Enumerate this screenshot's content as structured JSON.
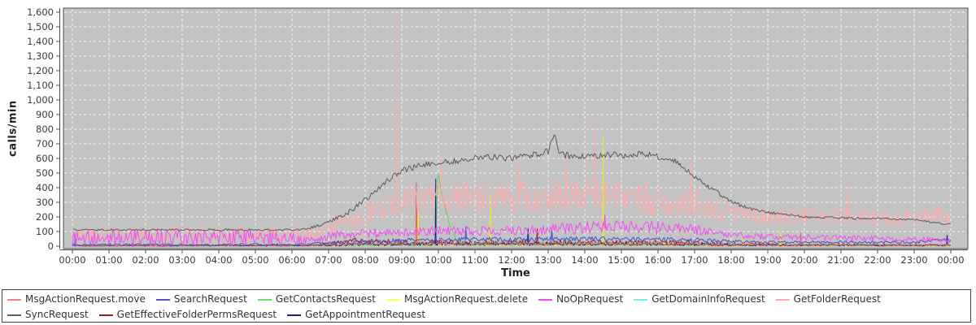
{
  "chart_data": {
    "type": "line",
    "title": "",
    "ylabel": "calls/min",
    "xlabel": "Time",
    "ylim": [
      0,
      1600
    ],
    "xlim_hours": [
      0,
      24
    ],
    "grid": "white-dashed",
    "plot_bg": "#c3c3c3",
    "axis_color": "#4f4f4f",
    "tick_text_color": "#3b3b3b",
    "legend_position": "bottom",
    "y_tick_values": [
      0,
      100,
      200,
      300,
      400,
      500,
      600,
      700,
      800,
      900,
      1000,
      1100,
      1200,
      1300,
      1400,
      1500,
      1600
    ],
    "y_ticks": [
      "0",
      "100",
      "200",
      "300",
      "400",
      "500",
      "600",
      "700",
      "800",
      "900",
      "1,000",
      "1,100",
      "1,200",
      "1,300",
      "1,400",
      "1,500",
      "1,600"
    ],
    "x_tick_hours": [
      0,
      1,
      2,
      3,
      4,
      5,
      6,
      7,
      8,
      9,
      10,
      11,
      12,
      13,
      14,
      15,
      16,
      17,
      18,
      19,
      20,
      21,
      22,
      23,
      24
    ],
    "x_ticks": [
      "00:00",
      "01:00",
      "02:00",
      "03:00",
      "04:00",
      "05:00",
      "06:00",
      "07:00",
      "08:00",
      "09:00",
      "10:00",
      "11:00",
      "12:00",
      "13:00",
      "14:00",
      "15:00",
      "16:00",
      "17:00",
      "18:00",
      "19:00",
      "20:00",
      "21:00",
      "22:00",
      "23:00",
      "00:00"
    ],
    "draw_order": [
      "GetDomainInfoRequest",
      "GetEffectiveFolderPermsRequest",
      "MsgActionRequest.delete",
      "GetContactsRequest",
      "GetAppointmentRequest",
      "MsgActionRequest.move",
      "SearchRequest",
      "GetFolderRequest",
      "NoOpRequest",
      "SyncRequest"
    ],
    "series": [
      {
        "name": "MsgActionRequest.move",
        "color": "#ef6161",
        "legend_color": "#f28080",
        "seed": 101,
        "keypoints": [
          [
            0,
            4
          ],
          [
            6.5,
            5
          ],
          [
            7,
            12
          ],
          [
            8,
            18
          ],
          [
            12,
            18
          ],
          [
            16,
            20
          ],
          [
            17,
            16
          ],
          [
            18,
            10
          ],
          [
            21,
            8
          ],
          [
            24,
            8
          ]
        ],
        "noise": [
          [
            0,
            4
          ],
          [
            6.5,
            5
          ],
          [
            7,
            12
          ],
          [
            17,
            14
          ],
          [
            18,
            9
          ],
          [
            24,
            7
          ]
        ],
        "spikes": [
          [
            9.4,
            435
          ],
          [
            19.9,
            90
          ]
        ]
      },
      {
        "name": "SearchRequest",
        "color": "#4d4dcc",
        "legend_color": "#5555cc",
        "seed": 202,
        "keypoints": [
          [
            0,
            10
          ],
          [
            6,
            10
          ],
          [
            7,
            20
          ],
          [
            8,
            30
          ],
          [
            9,
            40
          ],
          [
            10,
            45
          ],
          [
            11,
            48
          ],
          [
            12,
            45
          ],
          [
            13,
            48
          ],
          [
            14,
            52
          ],
          [
            15,
            48
          ],
          [
            16,
            48
          ],
          [
            17,
            42
          ],
          [
            18,
            32
          ],
          [
            19,
            28
          ],
          [
            21,
            28
          ],
          [
            22,
            26
          ],
          [
            23,
            28
          ],
          [
            23.8,
            45
          ],
          [
            24,
            35
          ]
        ],
        "noise": [
          [
            0,
            8
          ],
          [
            6,
            8
          ],
          [
            8,
            14
          ],
          [
            17,
            16
          ],
          [
            18,
            10
          ],
          [
            23,
            10
          ],
          [
            24,
            12
          ]
        ],
        "spikes": [
          [
            0.08,
            105
          ],
          [
            10.75,
            135
          ],
          [
            13.1,
            115
          ]
        ]
      },
      {
        "name": "GetContactsRequest",
        "color": "#59d859",
        "legend_color": "#66e066",
        "seed": 303,
        "keypoints": [
          [
            0,
            6
          ],
          [
            9.9,
            8
          ],
          [
            9.95,
            100
          ],
          [
            9.98,
            520
          ],
          [
            10.1,
            350
          ],
          [
            10.3,
            150
          ],
          [
            10.5,
            35
          ],
          [
            10.7,
            12
          ],
          [
            24,
            8
          ]
        ],
        "noise": [
          [
            0,
            5
          ],
          [
            9.85,
            5
          ],
          [
            9.9,
            0
          ],
          [
            10.45,
            0
          ],
          [
            10.6,
            7
          ],
          [
            24,
            6
          ]
        ],
        "spikes": []
      },
      {
        "name": "MsgActionRequest.delete",
        "color": "#e8e832",
        "legend_color": "#ffff5e",
        "seed": 404,
        "keypoints": [
          [
            0,
            4
          ],
          [
            7,
            8
          ],
          [
            8,
            12
          ],
          [
            16,
            12
          ],
          [
            18,
            8
          ],
          [
            24,
            6
          ]
        ],
        "noise": [
          [
            0,
            4
          ],
          [
            7,
            8
          ],
          [
            17,
            10
          ],
          [
            24,
            6
          ]
        ],
        "spikes": [
          [
            9.45,
            245
          ],
          [
            11.42,
            355
          ],
          [
            14.5,
            755
          ],
          [
            18.3,
            65
          ],
          [
            19.35,
            110
          ]
        ]
      },
      {
        "name": "NoOpRequest",
        "color": "#f24df2",
        "legend_color": "#f24df2",
        "seed": 505,
        "keypoints": [
          [
            0,
            55
          ],
          [
            6,
            55
          ],
          [
            6.5,
            50
          ],
          [
            7,
            70
          ],
          [
            8,
            85
          ],
          [
            9,
            95
          ],
          [
            10,
            105
          ],
          [
            12,
            105
          ],
          [
            13,
            115
          ],
          [
            14,
            125
          ],
          [
            15,
            135
          ],
          [
            16,
            125
          ],
          [
            17,
            115
          ],
          [
            17.5,
            95
          ],
          [
            18,
            75
          ],
          [
            19,
            65
          ],
          [
            20,
            60
          ],
          [
            21,
            58
          ],
          [
            22,
            52
          ],
          [
            23,
            48
          ],
          [
            24,
            42
          ]
        ],
        "noise": [
          [
            0,
            55
          ],
          [
            6,
            55
          ],
          [
            6.5,
            30
          ],
          [
            13,
            35
          ],
          [
            14,
            45
          ],
          [
            16,
            45
          ],
          [
            17,
            35
          ],
          [
            18,
            22
          ],
          [
            24,
            18
          ]
        ],
        "spikes": [
          [
            14.55,
            215
          ]
        ]
      },
      {
        "name": "GetDomainInfoRequest",
        "color": "#5fe0e0",
        "legend_color": "#6ef2f2",
        "seed": 606,
        "keypoints": [
          [
            0,
            4
          ],
          [
            7,
            8
          ],
          [
            8,
            15
          ],
          [
            9,
            22
          ],
          [
            10,
            28
          ],
          [
            11,
            25
          ],
          [
            13,
            30
          ],
          [
            15,
            28
          ],
          [
            16,
            26
          ],
          [
            17,
            22
          ],
          [
            18,
            15
          ],
          [
            19,
            10
          ],
          [
            20,
            8
          ],
          [
            24,
            6
          ]
        ],
        "noise": [
          [
            0,
            3
          ],
          [
            7,
            6
          ],
          [
            9,
            14
          ],
          [
            17,
            14
          ],
          [
            18,
            8
          ],
          [
            24,
            5
          ]
        ],
        "spikes": [
          [
            10.3,
            70
          ],
          [
            13.45,
            75
          ],
          [
            15.5,
            65
          ]
        ]
      },
      {
        "name": "GetFolderRequest",
        "color": "#ffabab",
        "legend_color": "#ffabab",
        "seed": 707,
        "keypoints": [
          [
            0,
            80
          ],
          [
            6,
            80
          ],
          [
            6.5,
            95
          ],
          [
            7,
            130
          ],
          [
            7.5,
            165
          ],
          [
            8,
            215
          ],
          [
            8.5,
            265
          ],
          [
            9,
            310
          ],
          [
            9.5,
            330
          ],
          [
            10,
            340
          ],
          [
            11,
            330
          ],
          [
            12,
            330
          ],
          [
            13,
            340
          ],
          [
            14,
            345
          ],
          [
            15,
            330
          ],
          [
            16,
            325
          ],
          [
            16.5,
            315
          ],
          [
            17,
            300
          ],
          [
            17.5,
            265
          ],
          [
            18,
            235
          ],
          [
            18.5,
            215
          ],
          [
            19,
            210
          ],
          [
            20,
            200
          ],
          [
            21,
            210
          ],
          [
            22,
            200
          ],
          [
            23,
            195
          ],
          [
            23.7,
            215
          ],
          [
            24,
            170
          ]
        ],
        "noise": [
          [
            0,
            58
          ],
          [
            6,
            58
          ],
          [
            6.5,
            55
          ],
          [
            7,
            60
          ],
          [
            8,
            80
          ],
          [
            9,
            110
          ],
          [
            10,
            120
          ],
          [
            16,
            120
          ],
          [
            17,
            110
          ],
          [
            17.5,
            90
          ],
          [
            18,
            70
          ],
          [
            19,
            62
          ],
          [
            22,
            60
          ],
          [
            23,
            68
          ],
          [
            24,
            70
          ]
        ],
        "spikes": [
          [
            8.87,
            1560
          ],
          [
            10.1,
            640
          ],
          [
            12.2,
            580
          ],
          [
            13.5,
            650
          ],
          [
            14.28,
            840
          ],
          [
            16.9,
            580
          ],
          [
            21.2,
            430
          ]
        ]
      },
      {
        "name": "SyncRequest",
        "color": "#5c5c5c",
        "legend_color": "#5c5c5c",
        "seed": 808,
        "keypoints": [
          [
            0,
            112
          ],
          [
            6,
            112
          ],
          [
            6.4,
            115
          ],
          [
            7,
            165
          ],
          [
            7.5,
            225
          ],
          [
            8,
            315
          ],
          [
            8.5,
            430
          ],
          [
            9,
            515
          ],
          [
            9.5,
            555
          ],
          [
            10,
            575
          ],
          [
            10.5,
            585
          ],
          [
            11,
            600
          ],
          [
            11.5,
            610
          ],
          [
            12,
            600
          ],
          [
            12.5,
            615
          ],
          [
            13,
            650
          ],
          [
            13.17,
            765
          ],
          [
            13.3,
            640
          ],
          [
            13.5,
            620
          ],
          [
            14,
            615
          ],
          [
            14.5,
            625
          ],
          [
            15,
            620
          ],
          [
            15.5,
            630
          ],
          [
            16,
            615
          ],
          [
            16.4,
            595
          ],
          [
            17,
            480
          ],
          [
            17.5,
            385
          ],
          [
            18,
            305
          ],
          [
            18.5,
            258
          ],
          [
            19,
            232
          ],
          [
            19.5,
            215
          ],
          [
            20,
            200
          ],
          [
            21,
            192
          ],
          [
            22,
            188
          ],
          [
            23,
            182
          ],
          [
            23.5,
            165
          ],
          [
            24,
            148
          ]
        ],
        "noise": [
          [
            0,
            7
          ],
          [
            6,
            7
          ],
          [
            7,
            12
          ],
          [
            8,
            18
          ],
          [
            9,
            22
          ],
          [
            16,
            22
          ],
          [
            17,
            20
          ],
          [
            18,
            14
          ],
          [
            19,
            9
          ],
          [
            24,
            7
          ]
        ],
        "spikes": []
      },
      {
        "name": "GetEffectiveFolderPermsRequest",
        "color": "#9b1c1c",
        "legend_color": "#9b1c1c",
        "seed": 909,
        "keypoints": [
          [
            0,
            3
          ],
          [
            6.5,
            4
          ],
          [
            7,
            15
          ],
          [
            7.8,
            45
          ],
          [
            8.2,
            25
          ],
          [
            12,
            22
          ],
          [
            16,
            25
          ],
          [
            17,
            20
          ],
          [
            18,
            12
          ],
          [
            20,
            8
          ],
          [
            24,
            6
          ]
        ],
        "noise": [
          [
            0,
            3
          ],
          [
            6.5,
            4
          ],
          [
            7,
            12
          ],
          [
            8,
            22
          ],
          [
            17,
            18
          ],
          [
            18,
            10
          ],
          [
            24,
            6
          ]
        ],
        "spikes": [
          [
            12.7,
            120
          ]
        ]
      },
      {
        "name": "GetAppointmentRequest",
        "color": "#1c1c8a",
        "legend_color": "#1c1c8a",
        "seed": 111,
        "keypoints": [
          [
            0,
            3
          ],
          [
            7,
            6
          ],
          [
            8,
            12
          ],
          [
            9,
            15
          ],
          [
            16,
            15
          ],
          [
            17,
            12
          ],
          [
            18,
            8
          ],
          [
            24,
            6
          ]
        ],
        "noise": [
          [
            0,
            3
          ],
          [
            7,
            5
          ],
          [
            8,
            10
          ],
          [
            17,
            10
          ],
          [
            18,
            6
          ],
          [
            24,
            5
          ]
        ],
        "spikes": [
          [
            9.93,
            460
          ],
          [
            12.45,
            120
          ],
          [
            23.9,
            75
          ]
        ]
      }
    ]
  }
}
